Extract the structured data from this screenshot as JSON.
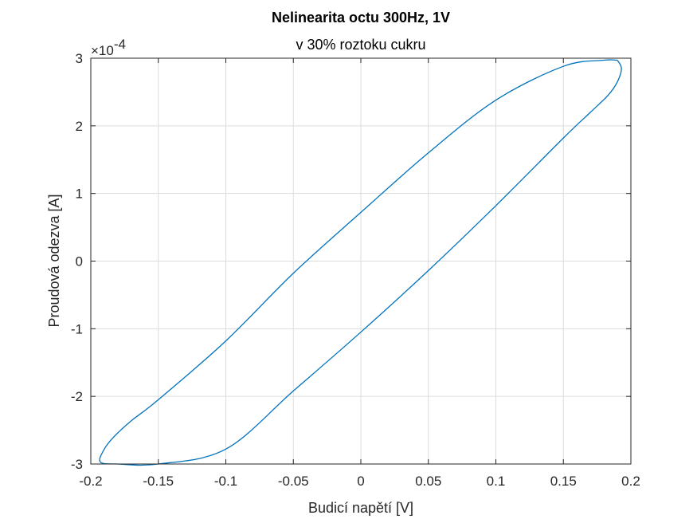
{
  "chart_data": {
    "type": "line",
    "title": "Nelinearita octu 300Hz, 1V",
    "subtitle": "v 30% roztoku cukru",
    "xlabel": "Budicí napětí [V]",
    "ylabel": "Proudová odezva [A]",
    "y_exponent_multiplier": "×10",
    "y_exponent_power": "-4",
    "xlim": [
      -0.2,
      0.2
    ],
    "ylim": [
      -3,
      3
    ],
    "x_ticks": [
      -0.2,
      -0.15,
      -0.1,
      -0.05,
      0,
      0.05,
      0.1,
      0.15,
      0.2
    ],
    "x_tick_labels": [
      "-0.2",
      "-0.15",
      "-0.1",
      "-0.05",
      "0",
      "0.05",
      "0.1",
      "0.15",
      "0.2"
    ],
    "y_ticks": [
      -3,
      -2,
      -1,
      0,
      1,
      2,
      3
    ],
    "y_tick_labels": [
      "-3",
      "-2",
      "-1",
      "0",
      "1",
      "2",
      "3"
    ],
    "grid": true,
    "series": [
      {
        "color": "#0072bd",
        "x": [
          0.19,
          0.193,
          0.19,
          0.183,
          0.17,
          0.15,
          0.1,
          0.05,
          0,
          -0.05,
          -0.1,
          -0.15,
          -0.18,
          -0.193,
          -0.19,
          -0.183,
          -0.17,
          -0.15,
          -0.1,
          -0.05,
          0,
          0.05,
          0.1,
          0.15,
          0.18,
          0.19
        ],
        "y": [
          2.97,
          2.85,
          2.65,
          2.45,
          2.2,
          1.82,
          0.82,
          -0.14,
          -1.05,
          -1.92,
          -2.78,
          -3.0,
          -3.0,
          -2.97,
          -2.78,
          -2.6,
          -2.36,
          -2.05,
          -1.18,
          -0.18,
          0.72,
          1.6,
          2.38,
          2.88,
          2.97,
          2.97
        ]
      }
    ]
  }
}
